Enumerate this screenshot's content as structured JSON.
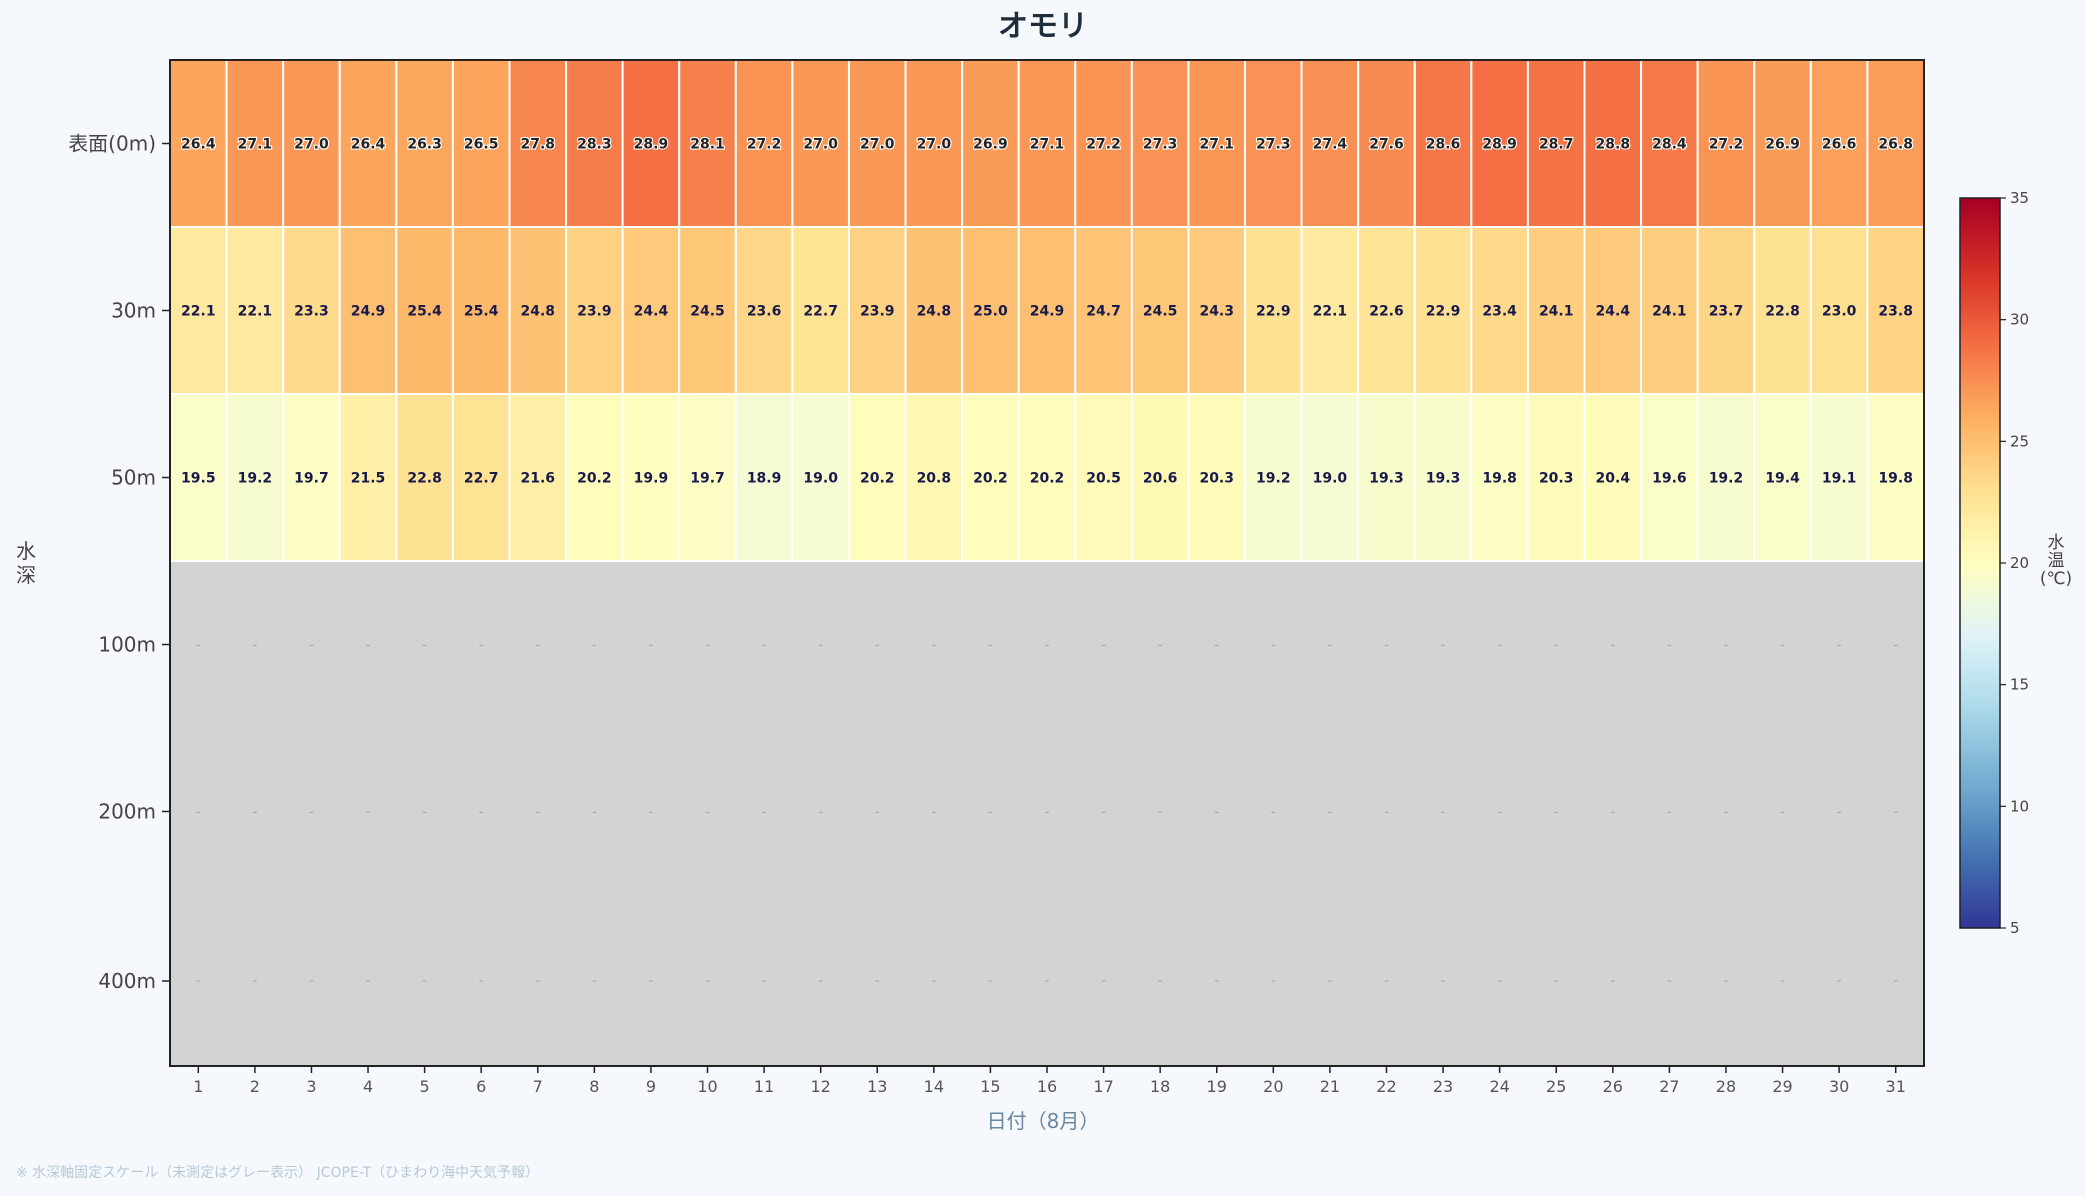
{
  "title": "オモリ",
  "footnote": "※ 水深軸固定スケール（未測定はグレー表示） JCOPE-T（ひまわり海中天気予報）",
  "chart_data": {
    "type": "heatmap",
    "title": "オモリ",
    "xlabel": "日付（8月）",
    "ylabel": "水深",
    "x": [
      "1",
      "2",
      "3",
      "4",
      "5",
      "6",
      "7",
      "8",
      "9",
      "10",
      "11",
      "12",
      "13",
      "14",
      "15",
      "16",
      "17",
      "18",
      "19",
      "20",
      "21",
      "22",
      "23",
      "24",
      "25",
      "26",
      "27",
      "28",
      "29",
      "30",
      "31"
    ],
    "depths": [
      "表面(0m)",
      "30m",
      "50m",
      "100m",
      "200m",
      "400m"
    ],
    "values": [
      [
        26.4,
        27.1,
        27.0,
        26.4,
        26.3,
        26.5,
        27.8,
        28.3,
        28.9,
        28.1,
        27.2,
        27.0,
        27.0,
        27.0,
        26.9,
        27.1,
        27.2,
        27.3,
        27.1,
        27.3,
        27.4,
        27.6,
        28.6,
        28.9,
        28.7,
        28.8,
        28.4,
        27.2,
        26.9,
        26.6,
        26.8
      ],
      [
        22.1,
        22.1,
        23.3,
        24.9,
        25.4,
        25.4,
        24.8,
        23.9,
        24.4,
        24.5,
        23.6,
        22.7,
        23.9,
        24.8,
        25.0,
        24.9,
        24.7,
        24.5,
        24.3,
        22.9,
        22.1,
        22.6,
        22.9,
        23.4,
        24.1,
        24.4,
        24.1,
        23.7,
        22.8,
        23.0,
        23.8
      ],
      [
        19.5,
        19.2,
        19.7,
        21.5,
        22.8,
        22.7,
        21.6,
        20.2,
        19.9,
        19.7,
        18.9,
        19.0,
        20.2,
        20.8,
        20.2,
        20.2,
        20.5,
        20.6,
        20.3,
        19.2,
        19.0,
        19.3,
        19.3,
        19.8,
        20.3,
        20.4,
        19.6,
        19.2,
        19.4,
        19.1,
        19.8
      ],
      [
        null,
        null,
        null,
        null,
        null,
        null,
        null,
        null,
        null,
        null,
        null,
        null,
        null,
        null,
        null,
        null,
        null,
        null,
        null,
        null,
        null,
        null,
        null,
        null,
        null,
        null,
        null,
        null,
        null,
        null,
        null
      ],
      [
        null,
        null,
        null,
        null,
        null,
        null,
        null,
        null,
        null,
        null,
        null,
        null,
        null,
        null,
        null,
        null,
        null,
        null,
        null,
        null,
        null,
        null,
        null,
        null,
        null,
        null,
        null,
        null,
        null,
        null,
        null
      ],
      [
        null,
        null,
        null,
        null,
        null,
        null,
        null,
        null,
        null,
        null,
        null,
        null,
        null,
        null,
        null,
        null,
        null,
        null,
        null,
        null,
        null,
        null,
        null,
        null,
        null,
        null,
        null,
        null,
        null,
        null,
        null
      ]
    ],
    "missing_label": "-",
    "missing_color": "#d3d3d3",
    "colorbar": {
      "label_lines": [
        "水",
        "温",
        "(℃)"
      ],
      "ticks": [
        5,
        10,
        15,
        20,
        25,
        30,
        35
      ],
      "range": [
        5,
        35
      ],
      "colormap": "RdYlBu_r"
    }
  }
}
